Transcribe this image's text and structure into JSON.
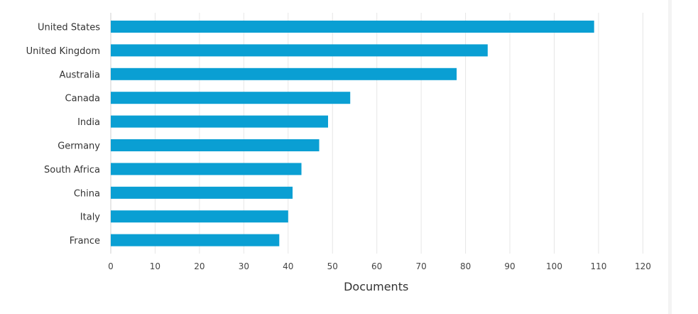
{
  "chart_data": {
    "type": "bar",
    "orientation": "horizontal",
    "categories": [
      "United States",
      "United Kingdom",
      "Australia",
      "Canada",
      "India",
      "Germany",
      "South Africa",
      "China",
      "Italy",
      "France"
    ],
    "values": [
      109,
      85,
      78,
      54,
      49,
      47,
      43,
      41,
      40,
      38
    ],
    "xlabel": "Documents",
    "ylabel": "",
    "xlim": [
      0,
      120
    ],
    "xticks": [
      0,
      10,
      20,
      30,
      40,
      50,
      60,
      70,
      80,
      90,
      100,
      110,
      120
    ],
    "grid": "vertical",
    "legend": "none",
    "bar_color": "#0a9fd3"
  }
}
